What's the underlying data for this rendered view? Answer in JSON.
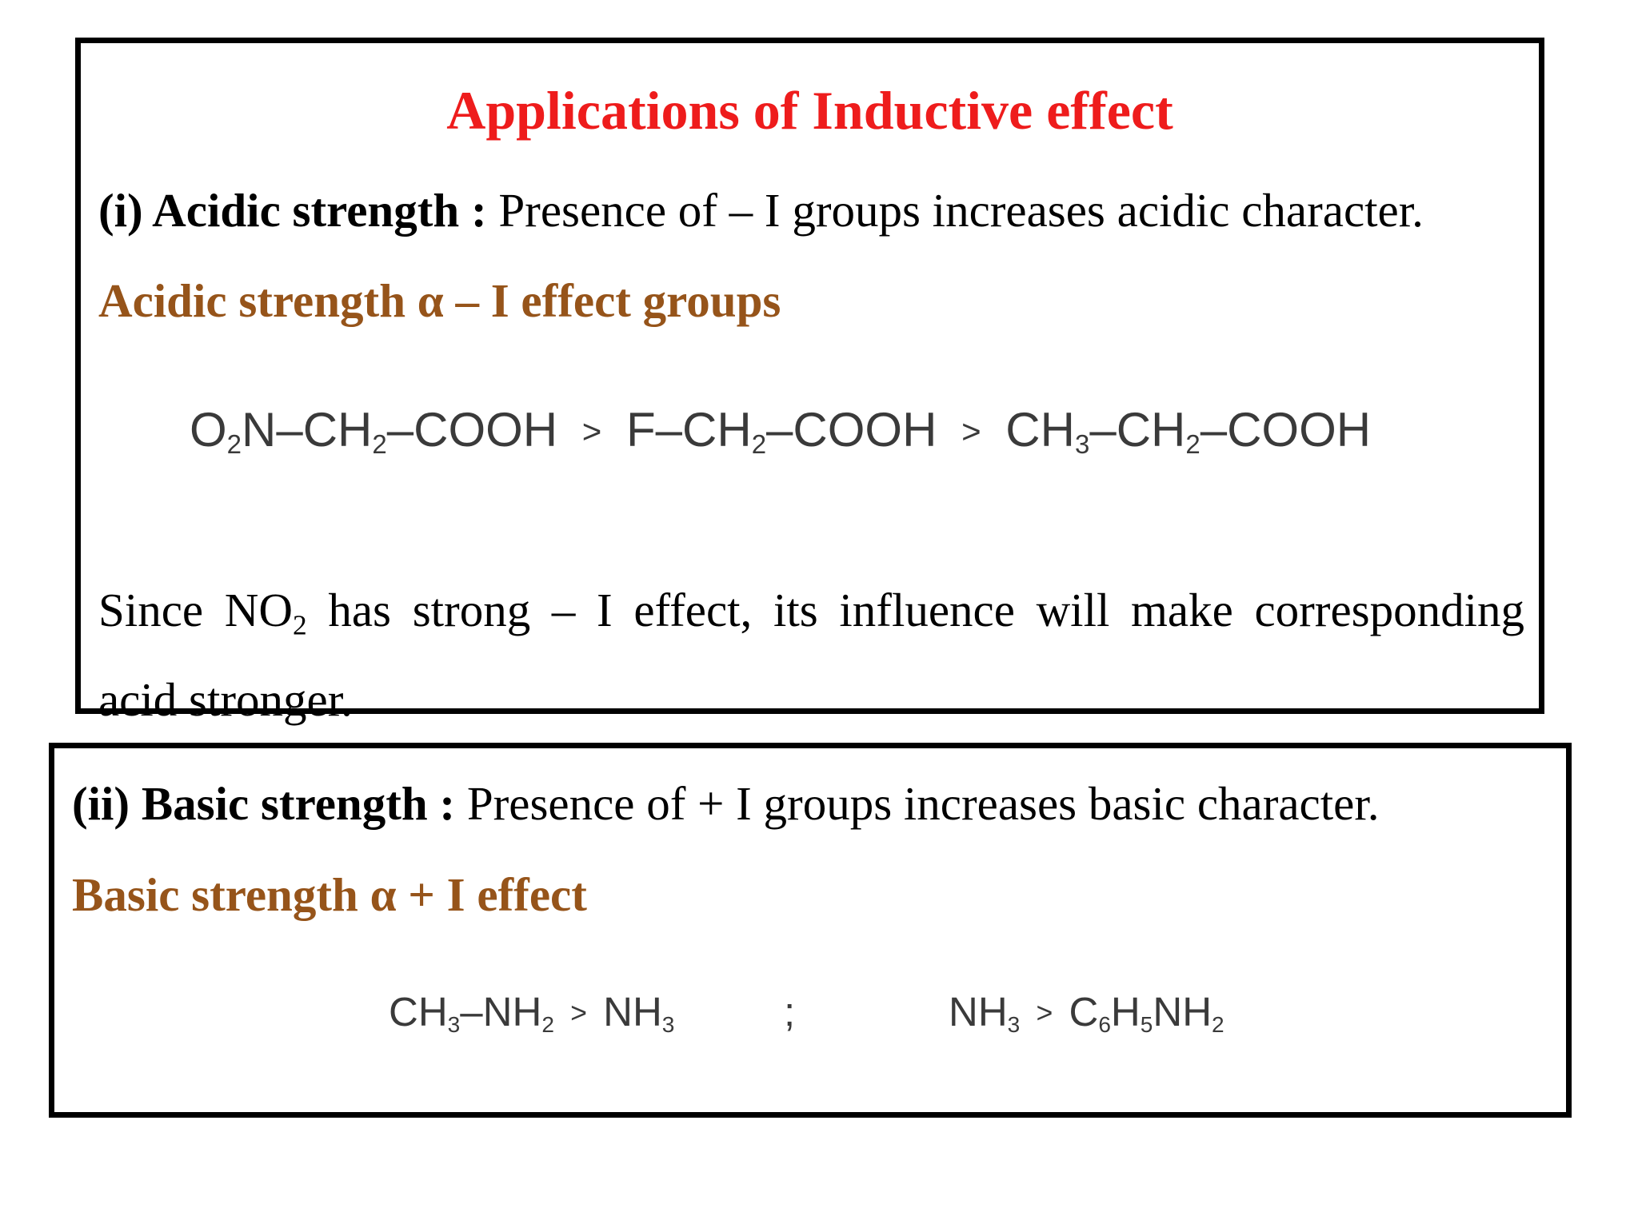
{
  "section1": {
    "title": "Applications of Inductive effect",
    "heading_label": "(i) Acidic strength :",
    "heading_text": " Presence of – I groups increases acidic character.",
    "proportionality": "Acidic strength α – I effect groups",
    "formula": {
      "a1": "O",
      "a1_sub": "2",
      "a2": "N–CH",
      "a2_sub": "2",
      "a3": "–COOH",
      "gt1": ">",
      "b1": "F–CH",
      "b1_sub": "2",
      "b2": "–COOH",
      "gt2": ">",
      "c1": "CH",
      "c1_sub": "3",
      "c2": "–CH",
      "c2_sub": "2",
      "c3": "–COOH"
    },
    "explanation_l1_a": "Since NO",
    "explanation_l1_sub": "2",
    "explanation_l1_b": " has strong – I effect, its influence will make corresponding",
    "explanation_l2": "acid stronger."
  },
  "section2": {
    "heading_label": "(ii) Basic strength :",
    "heading_text": " Presence of + I groups increases basic character.",
    "proportionality": "Basic strength α + I effect",
    "formula_left": {
      "a1": "CH",
      "a1_sub": "3",
      "a2": "–NH",
      "a2_sub": "2",
      "gt": ">",
      "b1": "NH",
      "b1_sub": "3"
    },
    "separator": ";",
    "formula_right": {
      "a1": "NH",
      "a1_sub": "3",
      "gt": ">",
      "b1": "C",
      "b1_sub": "6",
      "b2": "H",
      "b2_sub": "5",
      "b3": "NH",
      "b3_sub": "2"
    }
  },
  "colors": {
    "title": "#ee1c1c",
    "proportionality": "#96541a",
    "border": "#000000",
    "formula": "#3a3a3a"
  }
}
